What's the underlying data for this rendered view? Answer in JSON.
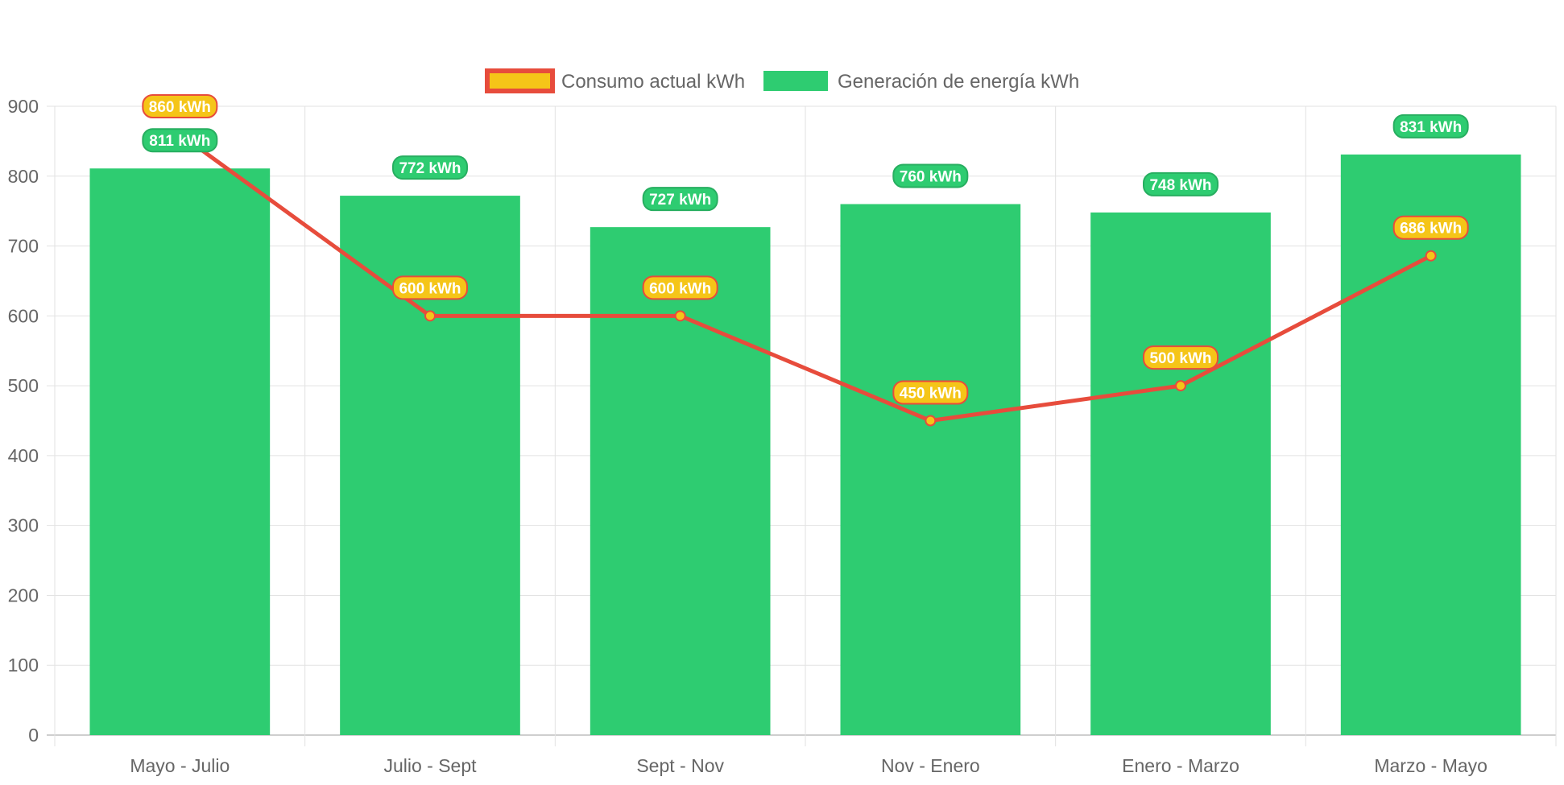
{
  "chart_data": {
    "type": "bar",
    "categories": [
      "Mayo - Julio",
      "Julio - Sept",
      "Sept - Nov",
      "Nov - Enero",
      "Enero - Marzo",
      "Marzo - Mayo"
    ],
    "series": [
      {
        "name": "Consumo actual kWh",
        "type": "line",
        "values": [
          860,
          600,
          600,
          450,
          500,
          686
        ],
        "labels": [
          "860 kWh",
          "600 kWh",
          "600 kWh",
          "450 kWh",
          "500 kWh",
          "686 kWh"
        ],
        "color": "#e74c3c",
        "fill_color": "#f5c518"
      },
      {
        "name": "Generación de energía kWh",
        "type": "bar",
        "values": [
          811,
          772,
          727,
          760,
          748,
          831
        ],
        "labels": [
          "811 kWh",
          "772 kWh",
          "727 kWh",
          "760 kWh",
          "748 kWh",
          "831 kWh"
        ],
        "color": "#2ecc71"
      }
    ],
    "y_ticks": [
      "0",
      "100",
      "200",
      "300",
      "400",
      "500",
      "600",
      "700",
      "800",
      "900"
    ],
    "ylim": [
      0,
      900
    ],
    "grid": true,
    "legend_position": "top-center"
  }
}
